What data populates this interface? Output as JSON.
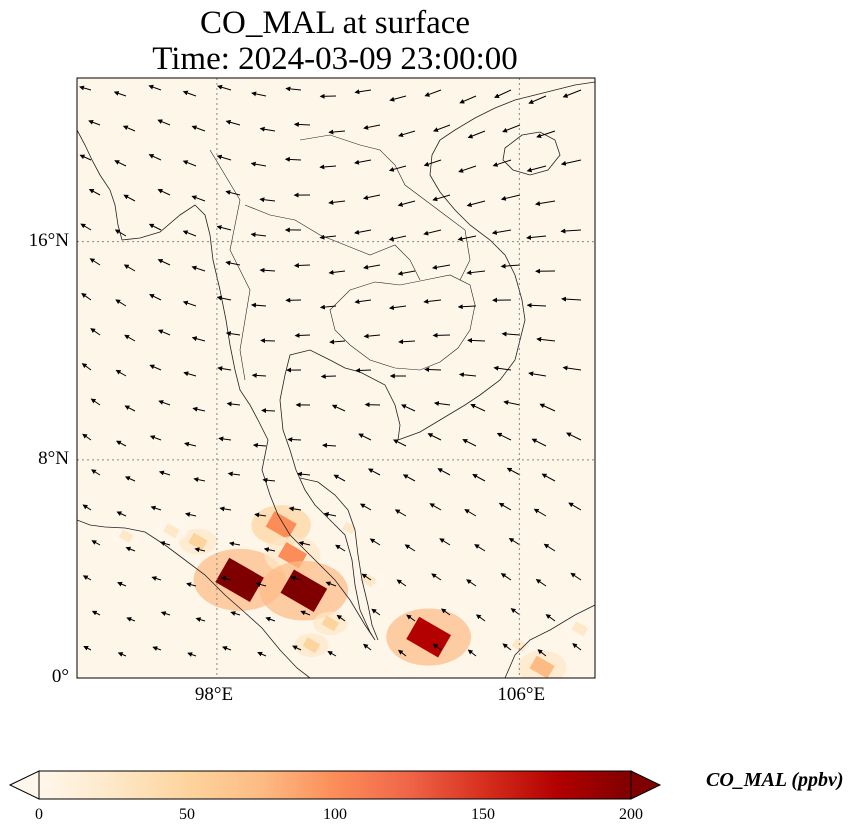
{
  "title": {
    "line1": "CO_MAL at surface",
    "line2": "Time: 2024-03-09 23:00:00"
  },
  "map": {
    "lon_range": [
      94.3,
      108.0
    ],
    "lat_range": [
      0,
      22
    ],
    "gridlines": "dotted",
    "lat_ticks": [
      {
        "value": 0,
        "label": "0°"
      },
      {
        "value": 8,
        "label": "8°N"
      },
      {
        "value": 16,
        "label": "16°N"
      }
    ],
    "lon_ticks": [
      {
        "value": 98,
        "label": "98°E"
      },
      {
        "value": 106,
        "label": "106°E"
      }
    ],
    "field": "CO_MAL",
    "vectors": "surface wind arrows",
    "colormap": "OrRd",
    "concentration_hotspots": [
      {
        "lon": 98.6,
        "lat": 3.6,
        "value": 200
      },
      {
        "lon": 99.7,
        "lat": 5.6,
        "value": 110
      },
      {
        "lon": 100.0,
        "lat": 4.5,
        "value": 100
      },
      {
        "lon": 100.3,
        "lat": 3.2,
        "value": 190
      },
      {
        "lon": 103.6,
        "lat": 1.5,
        "value": 180
      },
      {
        "lon": 97.5,
        "lat": 5.0,
        "value": 50
      },
      {
        "lon": 96.8,
        "lat": 5.4,
        "value": 35
      },
      {
        "lon": 95.6,
        "lat": 5.2,
        "value": 25
      },
      {
        "lon": 101.0,
        "lat": 2.0,
        "value": 40
      },
      {
        "lon": 101.5,
        "lat": 5.5,
        "value": 20
      },
      {
        "lon": 102.0,
        "lat": 3.6,
        "value": 35
      },
      {
        "lon": 100.5,
        "lat": 1.2,
        "value": 40
      },
      {
        "lon": 107.6,
        "lat": 1.8,
        "value": 35
      },
      {
        "lon": 106.6,
        "lat": 0.4,
        "value": 80
      },
      {
        "lon": 106.0,
        "lat": 1.2,
        "value": 30
      }
    ]
  },
  "colorbar": {
    "label": "CO_MAL (ppbv)",
    "min": 0,
    "max": 200,
    "extend": "both",
    "ticks": [
      "0",
      "50",
      "100",
      "150",
      "200"
    ],
    "colors": [
      "#fff7ec",
      "#fee8c8",
      "#fdd49e",
      "#fdbb84",
      "#fc8d59",
      "#ef6548",
      "#d7301f",
      "#b30000",
      "#7f0000"
    ]
  }
}
